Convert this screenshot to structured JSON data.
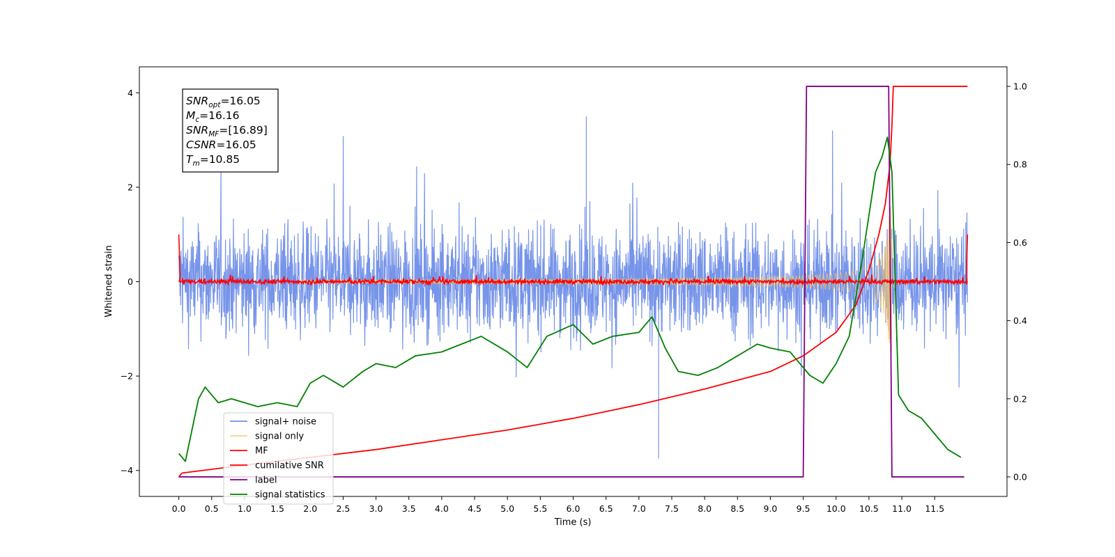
{
  "chart_data": {
    "type": "line",
    "xlabel": "Time (s)",
    "ylabel": "Whitened strain",
    "xlim": [
      -0.6,
      12.6
    ],
    "ylim": [
      -4.55,
      4.55
    ],
    "ylim_right": [
      -0.05,
      1.05
    ],
    "x_ticks": [
      "0.0",
      "0.5",
      "1.0",
      "1.5",
      "2.0",
      "2.5",
      "3.0",
      "3.5",
      "4.0",
      "4.5",
      "5.0",
      "5.5",
      "6.0",
      "6.5",
      "7.0",
      "7.5",
      "8.0",
      "8.5",
      "9.0",
      "9.5",
      "10.0",
      "10.5",
      "11.0",
      "11.5"
    ],
    "y_ticks": [
      "4",
      "2",
      "0",
      "−2",
      "−4"
    ],
    "y_ticks_right": [
      "1.0",
      "0.8",
      "0.6",
      "0.4",
      "0.2",
      "0.0"
    ],
    "info_box": [
      {
        "var": "SNR",
        "sub": "opt",
        "value": "=16.05"
      },
      {
        "var": "M",
        "sub": "c",
        "value": "=16.16"
      },
      {
        "var": "SNR",
        "sub": "MF",
        "value": "=[16.89]"
      },
      {
        "var": "CSNR",
        "sub": "",
        "value": "=16.05"
      },
      {
        "var": "T",
        "sub": "m",
        "value": "=10.85"
      }
    ],
    "legend": {
      "placement": "lower-left"
    },
    "series": [
      {
        "name": "signal+ noise",
        "color": "#6f8ee8",
        "axis": "left",
        "kind": "noise",
        "x_range": [
          0,
          12
        ],
        "band": [
          -1.9,
          1.9
        ],
        "peak_extremes": [
          3.5,
          -3.75
        ]
      },
      {
        "name": "signal only",
        "color": "#f5c46a",
        "axis": "left",
        "kind": "chirp",
        "x_range": [
          0,
          10.85
        ],
        "peak_amplitude": 1.6
      },
      {
        "name": "MF",
        "color": "#ff0000",
        "axis": "left",
        "kind": "noise",
        "x_range": [
          0,
          12
        ],
        "band": [
          -0.1,
          0.1
        ],
        "edge_value": 1.0
      },
      {
        "name": "cumilative SNR",
        "color": "#ff0000",
        "axis": "right",
        "x": [
          0,
          0.05,
          1,
          2,
          3,
          4,
          5,
          6,
          7,
          8,
          9,
          9.5,
          10,
          10.3,
          10.5,
          10.65,
          10.75,
          10.82,
          10.85,
          10.87,
          12
        ],
        "y": [
          0.0,
          0.01,
          0.03,
          0.05,
          0.07,
          0.095,
          0.12,
          0.15,
          0.185,
          0.225,
          0.27,
          0.31,
          0.37,
          0.44,
          0.53,
          0.62,
          0.7,
          0.8,
          0.9,
          1.0,
          1.0
        ]
      },
      {
        "name": "label",
        "color": "#800080",
        "axis": "right",
        "x": [
          0,
          9.5,
          9.55,
          10.8,
          10.85,
          11.95
        ],
        "y": [
          0,
          0,
          1,
          1,
          0,
          0
        ]
      },
      {
        "name": "signal statistics",
        "color": "#008000",
        "axis": "right",
        "x": [
          0,
          0.1,
          0.2,
          0.3,
          0.4,
          0.5,
          0.6,
          0.8,
          1.0,
          1.2,
          1.5,
          1.8,
          2.0,
          2.2,
          2.5,
          2.8,
          3.0,
          3.3,
          3.6,
          4.0,
          4.3,
          4.6,
          5.0,
          5.3,
          5.6,
          6.0,
          6.3,
          6.6,
          7.0,
          7.2,
          7.4,
          7.6,
          7.9,
          8.2,
          8.5,
          8.8,
          9.0,
          9.3,
          9.6,
          9.8,
          10.0,
          10.2,
          10.4,
          10.6,
          10.7,
          10.78,
          10.85,
          10.95,
          11.1,
          11.3,
          11.5,
          11.7,
          11.9
        ],
        "y": [
          0.06,
          0.04,
          0.12,
          0.2,
          0.23,
          0.21,
          0.19,
          0.2,
          0.19,
          0.18,
          0.19,
          0.18,
          0.24,
          0.26,
          0.23,
          0.27,
          0.29,
          0.28,
          0.31,
          0.32,
          0.34,
          0.36,
          0.32,
          0.28,
          0.36,
          0.39,
          0.34,
          0.36,
          0.37,
          0.41,
          0.33,
          0.27,
          0.26,
          0.28,
          0.31,
          0.34,
          0.33,
          0.32,
          0.26,
          0.24,
          0.29,
          0.36,
          0.56,
          0.78,
          0.82,
          0.87,
          0.78,
          0.21,
          0.17,
          0.15,
          0.11,
          0.07,
          0.05
        ]
      }
    ]
  }
}
